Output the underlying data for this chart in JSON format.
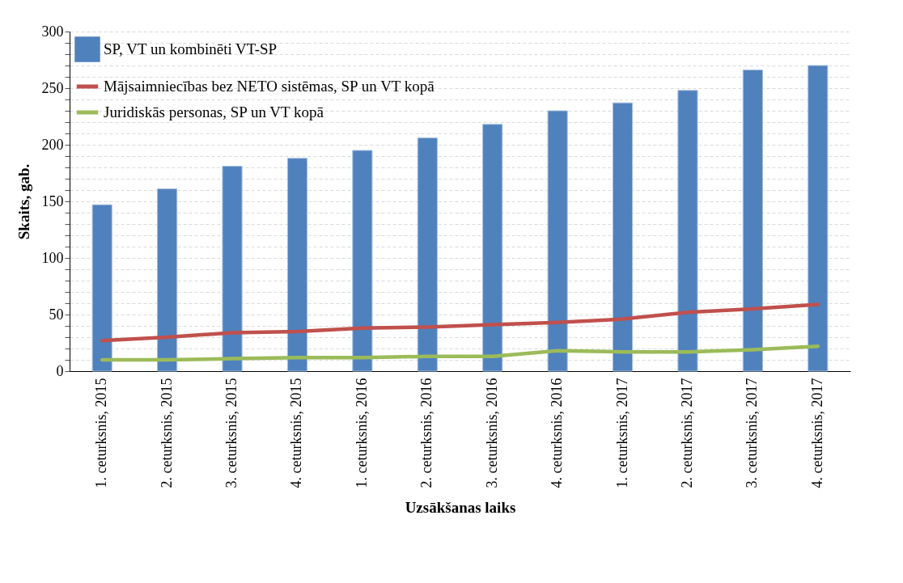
{
  "chart_data": {
    "type": "bar",
    "xlabel": "Uzsākšanas laiks",
    "ylabel": "Skaits, gab.",
    "categories": [
      "1. ceturksnis, 2015",
      "2. ceturksnis, 2015",
      "3. ceturksnis, 2015",
      "4. ceturksnis, 2015",
      "1. ceturksnis, 2016",
      "2. ceturksnis, 2016",
      "3. ceturksnis, 2016",
      "4. ceturksnis, 2016",
      "1. ceturksnis, 2017",
      "2. ceturksnis, 2017",
      "3. ceturksnis, 2017",
      "4. ceturksnis, 2017"
    ],
    "series": [
      {
        "name": "SP, VT un kombinēti VT-SP",
        "color": "#4f81bd",
        "values": [
          147,
          161,
          181,
          188,
          195,
          206,
          218,
          230,
          237,
          248,
          266,
          270
        ]
      },
      {
        "name": "Mājsaimniecības bez NETO sistēmas, SP un VT kopā",
        "type": "line",
        "color": "#c0504d",
        "values": [
          27,
          30,
          34,
          35,
          38,
          39,
          41,
          43,
          46,
          52,
          55,
          59
        ]
      },
      {
        "name": "Juridiskās personas, SP un VT kopā",
        "type": "line",
        "color": "#9bbb59",
        "values": [
          10,
          10,
          11,
          12,
          12,
          13,
          13,
          18,
          17,
          17,
          19,
          22
        ]
      }
    ],
    "ylim": [
      0,
      300
    ],
    "yticks": [
      0,
      {
        "value": 10,
        "label": null
      },
      {
        "value": 20,
        "label": null
      },
      {
        "value": 30,
        "label": null
      },
      {
        "value": 40,
        "label": null
      },
      50,
      {
        "value": 60,
        "label": null
      },
      {
        "value": 70,
        "label": null
      },
      {
        "value": 80,
        "label": null
      },
      {
        "value": 90,
        "label": null
      },
      100,
      {
        "value": 110,
        "label": null
      },
      {
        "value": 120,
        "label": null
      },
      {
        "value": 130,
        "label": null
      },
      {
        "value": 140,
        "label": null
      },
      150,
      {
        "value": 160,
        "label": null
      },
      {
        "value": 170,
        "label": null
      },
      {
        "value": 180,
        "label": null
      },
      {
        "value": 190,
        "label": null
      },
      200,
      {
        "value": 210,
        "label": null
      },
      {
        "value": 220,
        "label": null
      },
      {
        "value": 230,
        "label": null
      },
      {
        "value": 240,
        "label": null
      },
      250,
      {
        "value": 260,
        "label": null
      },
      {
        "value": 270,
        "label": null
      },
      {
        "value": 280,
        "label": null
      },
      {
        "value": 290,
        "label": null
      },
      300
    ],
    "grid": "y",
    "legend": "top left"
  }
}
